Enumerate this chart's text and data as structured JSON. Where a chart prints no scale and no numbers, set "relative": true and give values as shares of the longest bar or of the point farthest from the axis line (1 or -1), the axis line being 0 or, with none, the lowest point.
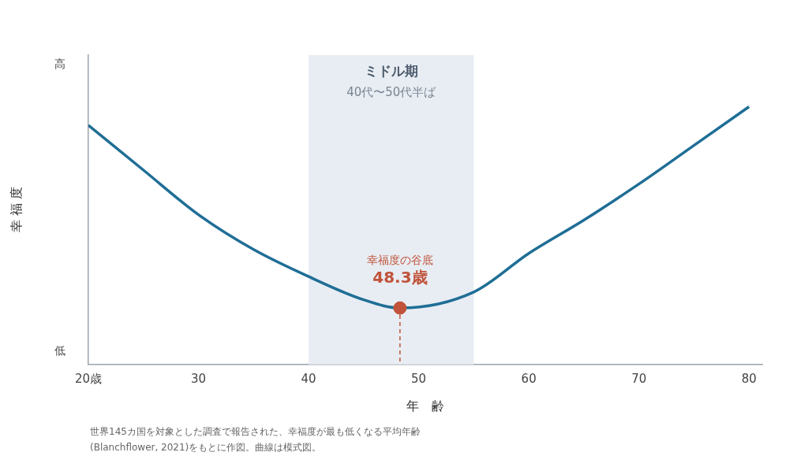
{
  "chart_data": {
    "type": "line",
    "relative": true,
    "xlabel": "年　齢",
    "ylabel": "幸 福 度",
    "xlim": [
      20,
      81.2
    ],
    "xticks": [
      {
        "value": 20,
        "label": "20歳"
      },
      30,
      40,
      50,
      60,
      70,
      80
    ],
    "grid": false,
    "legend": false,
    "series": [
      {
        "type": "line",
        "color": "#1f6e96",
        "marker": "none",
        "x": [
          20,
          25,
          30,
          35,
          40,
          45,
          48.3,
          55,
          60,
          65,
          70,
          75,
          80
        ],
        "values": [
          0.928,
          0.754,
          0.581,
          0.446,
          0.341,
          0.251,
          0.219,
          0.281,
          0.431,
          0.56,
          0.7,
          0.85,
          1.0
        ]
      },
      {
        "type": "scatter",
        "color": "#c0533a",
        "marker": "circle",
        "x": [
          48.3
        ],
        "values": [
          0.219
        ]
      }
    ],
    "ref_lines": [
      {
        "axis": "x",
        "value": 48.3,
        "color": "#c0533a",
        "line_style": "dashed"
      }
    ],
    "bands": [
      {
        "axis": "x",
        "from": 40,
        "to": 55,
        "label": "ミドル期\n40代〜50代半ば",
        "color": "#e8edf3"
      }
    ],
    "annotations": [
      "高",
      "低",
      "幸福度の谷底",
      "48.3歳",
      "世界145カ国を対象とした調査で報告された、幸福度が最も低くなる平均年齢\n(Blanchflower, 2021)をもとに作図。曲線は模式図。"
    ]
  }
}
